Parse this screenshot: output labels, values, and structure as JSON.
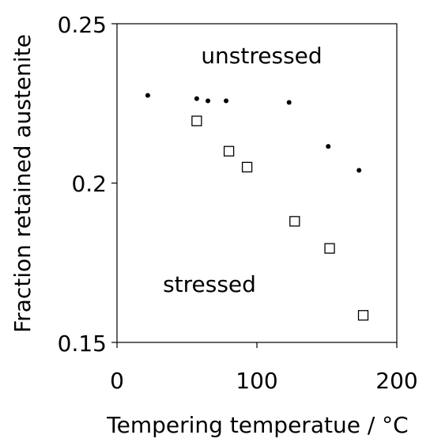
{
  "chart_data": {
    "type": "scatter",
    "xlabel": "Tempering temperatue / °C",
    "ylabel": "Fraction retained austenite",
    "xlim": [
      0,
      200
    ],
    "ylim": [
      0.15,
      0.25
    ],
    "x_ticks": [
      "0",
      "100",
      "200"
    ],
    "y_ticks": [
      "0.15",
      "0.2",
      "0.25"
    ],
    "grid": false,
    "series": [
      {
        "name": "unstressed",
        "marker": "filled-dot",
        "x": [
          22,
          57,
          65,
          78,
          123,
          151,
          173
        ],
        "y": [
          0.2275,
          0.2265,
          0.2258,
          0.2258,
          0.2253,
          0.2115,
          0.204
        ]
      },
      {
        "name": "stressed",
        "marker": "open-square",
        "x": [
          57,
          80,
          93,
          127,
          152,
          176
        ],
        "y": [
          0.2195,
          0.21,
          0.205,
          0.188,
          0.1795,
          0.1585
        ]
      }
    ],
    "annotations": [
      "unstressed",
      "stressed"
    ],
    "colors": {
      "axis": "#000000",
      "marker": "#000000",
      "background": "#ffffff"
    }
  }
}
